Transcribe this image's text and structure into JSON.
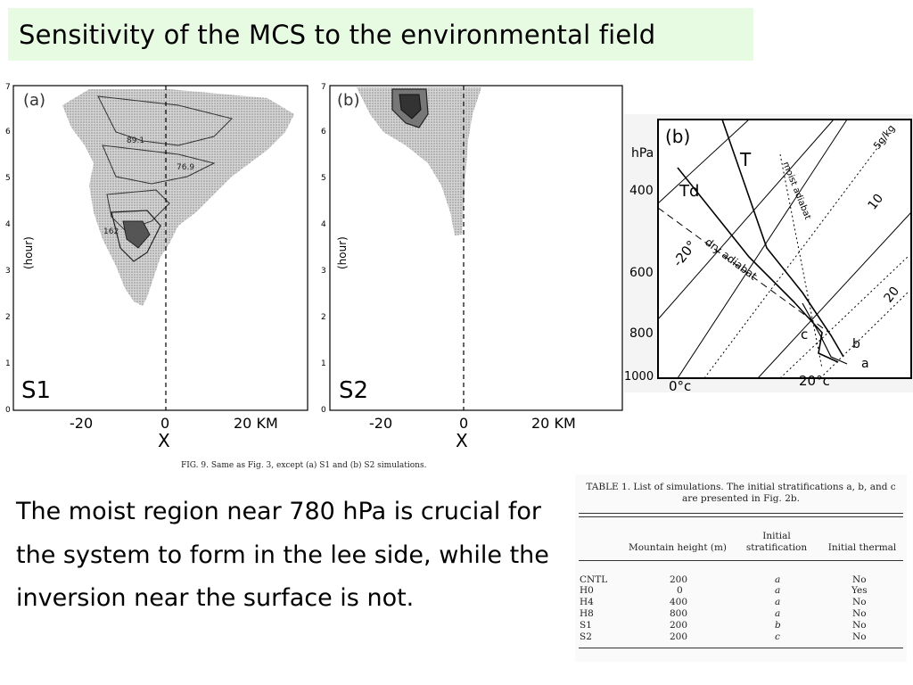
{
  "slide": {
    "title": "Sensitivity of the MCS to the environmental field",
    "body_text": " The moist region near 780 hPa is crucial for the system to form in the lee side, while the inversion near the surface is not."
  },
  "fig9": {
    "caption": "FIG. 9. Same as Fig. 3, except (a) S1 and (b) S2 simulations.",
    "panel_a_label": "(a)",
    "panel_b_label": "(b)",
    "panel_a_run": "S1",
    "panel_b_run": "S2",
    "y_label": "(hour)",
    "y_ticks": [
      "0",
      "1",
      "2",
      "3",
      "4",
      "5",
      "6",
      "7"
    ],
    "x_tick_neg": "-20",
    "x_tick_zero": "0",
    "x_tick_pos": "20 KM",
    "x_label": "X",
    "contour_labels": [
      "89.1",
      "76.9",
      "162"
    ]
  },
  "sounding": {
    "panel_label": "(b)",
    "pressure_unit": "hPa",
    "pressure_ticks": [
      "400",
      "600",
      "800",
      "1000"
    ],
    "temp_labels": [
      "0°c",
      "20°c"
    ],
    "isotherm_labels": [
      "-20°",
      "10",
      "20"
    ],
    "mixing_ratio_label": "5g/kg",
    "line_labels": {
      "T": "T",
      "Td": "Td",
      "moist": "moist adiabat",
      "dry": "dry adiabat"
    },
    "profile_labels": [
      "c",
      "b",
      "a"
    ]
  },
  "table1": {
    "caption": "TABLE 1. List of simulations. The initial stratifications a, b, and c are presented in Fig. 2b.",
    "columns": [
      "Mountain height (m)",
      "Initial stratification",
      "Initial thermal"
    ],
    "rows": [
      {
        "name": "CNTL",
        "height": "200",
        "strat": "a",
        "thermal": "No"
      },
      {
        "name": "H0",
        "height": "0",
        "strat": "a",
        "thermal": "Yes"
      },
      {
        "name": "H4",
        "height": "400",
        "strat": "a",
        "thermal": "No"
      },
      {
        "name": "H8",
        "height": "800",
        "strat": "a",
        "thermal": "No"
      },
      {
        "name": "S1",
        "height": "200",
        "strat": "b",
        "thermal": "No"
      },
      {
        "name": "S2",
        "height": "200",
        "strat": "c",
        "thermal": "No"
      }
    ]
  },
  "colors": {
    "title_bg": "#e7fbe3",
    "shade": "#bdbdbd"
  }
}
